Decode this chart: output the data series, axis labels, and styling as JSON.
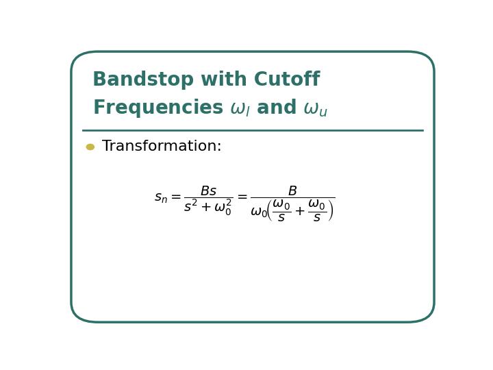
{
  "bg_color": "#ffffff",
  "border_color": "#2d7068",
  "title_color": "#2d7068",
  "divider_color": "#2d7068",
  "bullet_color": "#c8b84a",
  "bullet_text_color": "#000000",
  "title_fontsize": 20,
  "bullet_fontsize": 16,
  "formula_fontsize": 14,
  "border_lw": 2.5
}
